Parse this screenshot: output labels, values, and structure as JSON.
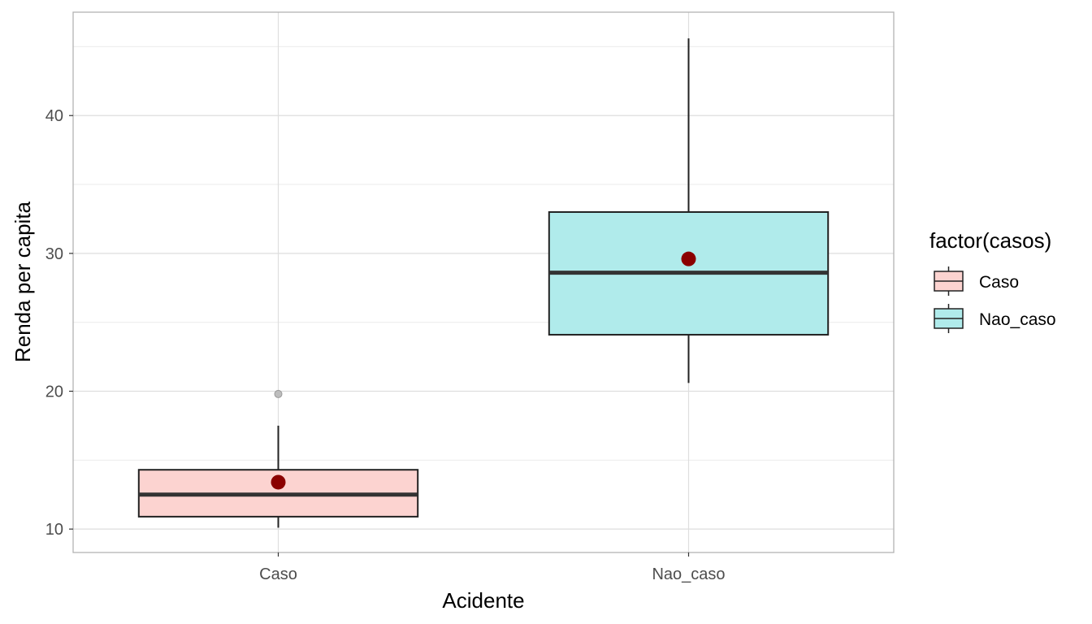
{
  "chart_data": {
    "type": "boxplot",
    "xlabel": "Acidente",
    "ylabel": "Renda per capita",
    "categories": [
      "Caso",
      "Nao_caso"
    ],
    "ylim": [
      8.3,
      47.5
    ],
    "yticks": [
      10,
      20,
      30,
      40
    ],
    "grid": true,
    "legend": {
      "title": "factor(casos)",
      "placement": "right",
      "entries": [
        "Caso",
        "Nao_caso"
      ]
    },
    "boxes": [
      {
        "name": "Caso",
        "color": "#fcd3d0",
        "whisker_low": 10.1,
        "q1": 10.9,
        "median": 12.5,
        "q3": 14.3,
        "whisker_high": 17.5,
        "mean": 13.4,
        "outliers": [
          19.8
        ]
      },
      {
        "name": "Nao_caso",
        "color": "#b0ebeb",
        "whisker_low": 20.6,
        "q1": 24.1,
        "median": 28.6,
        "q3": 33.0,
        "whisker_high": 45.6,
        "mean": 29.6,
        "outliers": []
      }
    ],
    "mean_color": "#8b0000"
  }
}
